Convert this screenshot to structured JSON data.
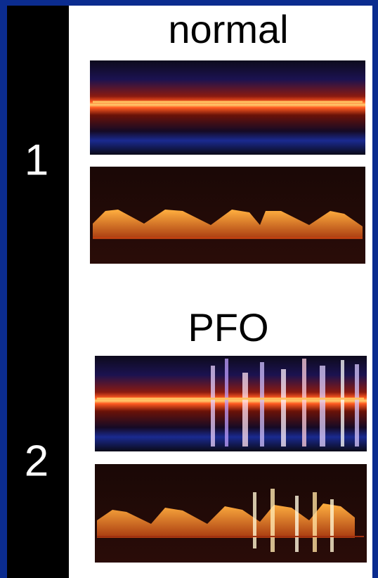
{
  "panels": [
    {
      "number": "1",
      "title": "normal"
    },
    {
      "number": "2",
      "title": "PFO"
    }
  ]
}
